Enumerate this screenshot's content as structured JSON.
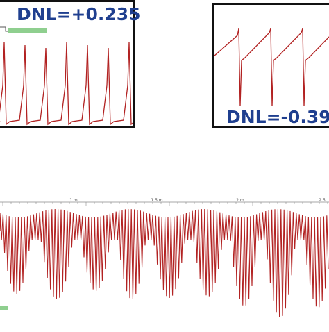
{
  "colors": {
    "signal": "#b22222",
    "label": "#1f3f8f",
    "frame": "#111111",
    "tag": "#8fcf8f",
    "axis": "#8a8a8a"
  },
  "chart_data": [
    {
      "type": "line",
      "panel": "left-inset",
      "annotation": "DNL=+0.235",
      "pattern": "sawtooth with positive spikes",
      "spike_count": 8
    },
    {
      "type": "line",
      "panel": "right-inset",
      "annotation": "DNL=-0.39",
      "pattern": "sawtooth with negative spikes",
      "spike_count": 4
    },
    {
      "type": "line",
      "panel": "main",
      "pattern": "oscillating burst envelope",
      "x_tick_labels": [
        "1 m",
        "1.5 m",
        "2 m",
        "2.5"
      ],
      "burst_count": 9
    }
  ]
}
